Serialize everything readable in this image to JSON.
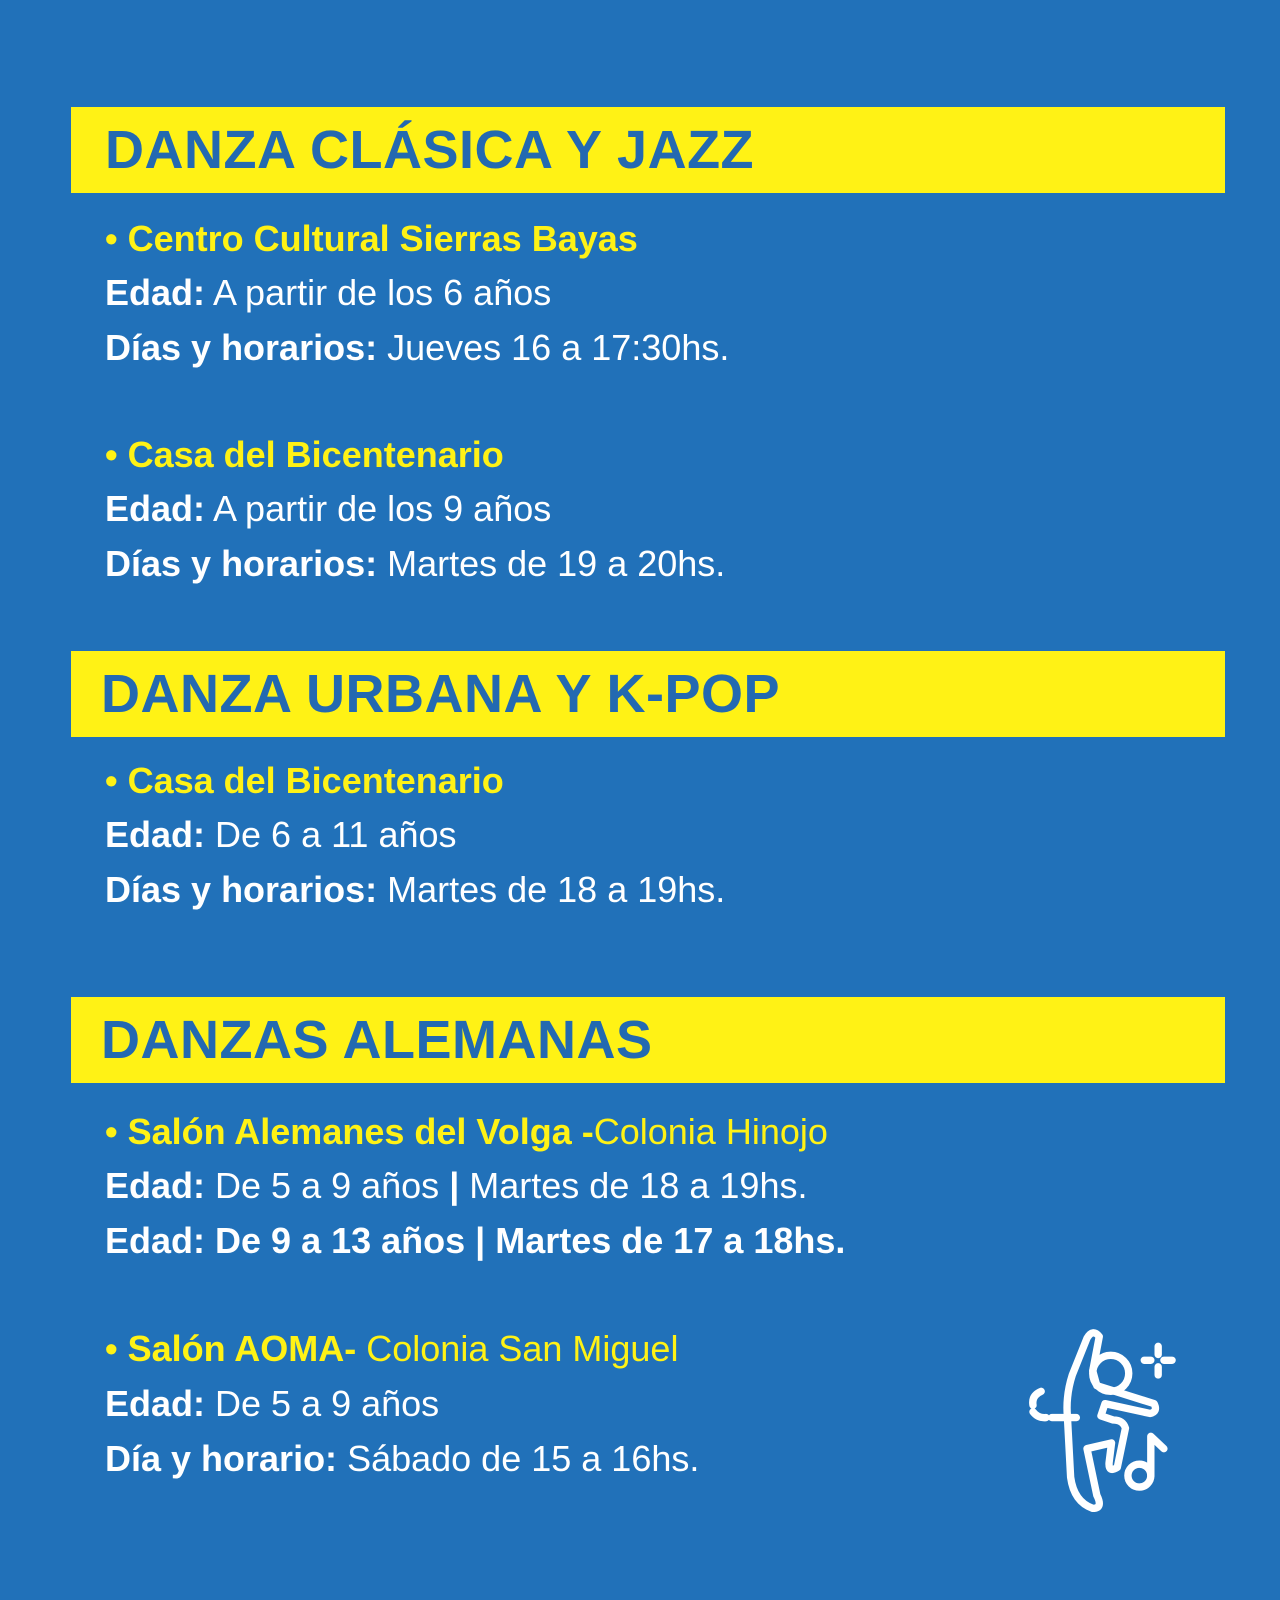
{
  "colors": {
    "background": "#2171b9",
    "highlight": "#fff215",
    "heading_text": "#2369b1",
    "body_text": "#ffffff"
  },
  "sections": [
    {
      "title": "DANZA CLÁSICA Y JAZZ",
      "venues": [
        {
          "name": "• Centro Cultural Sierras Bayas",
          "age_label": "Edad:",
          "age": " A partir de los 6 años",
          "schedule_label": "Días y horarios:",
          "schedule": " Jueves 16 a 17:30hs."
        },
        {
          "name": "• Casa del Bicentenario",
          "age_label": "Edad:",
          "age": " A partir de los 9 años",
          "schedule_label": "Días y horarios:",
          "schedule": " Martes de 19 a 20hs."
        }
      ]
    },
    {
      "title": "DANZA URBANA Y K-POP",
      "venues": [
        {
          "name": "• Casa del Bicentenario",
          "age_label": "Edad:",
          "age": " De 6 a 11 años",
          "schedule_label": "Días y horarios:",
          "schedule": " Martes de 18 a 19hs."
        }
      ]
    },
    {
      "title": "DANZAS ALEMANAS",
      "venues": [
        {
          "name": "• Salón Alemanes del Volga -",
          "location": "Colonia Hinojo",
          "age_label": "Edad:",
          "age": " De 5 a 9 años ",
          "separator": "|",
          "schedule": " Martes de 18 a 19hs.",
          "age_label2": "Edad:",
          "age2": " De 9 a 13 años ",
          "separator2": "|",
          "schedule2": " Martes de 17 a 18hs."
        },
        {
          "name": "• Salón AOMA-",
          "location": " Colonia San Miguel",
          "age_label": "Edad:",
          "age": " De 5 a 9 años",
          "schedule_label": "Día y horario:",
          "schedule": " Sábado de 15 a 16hs."
        }
      ]
    }
  ],
  "icon": "dancer-with-music-note-icon"
}
